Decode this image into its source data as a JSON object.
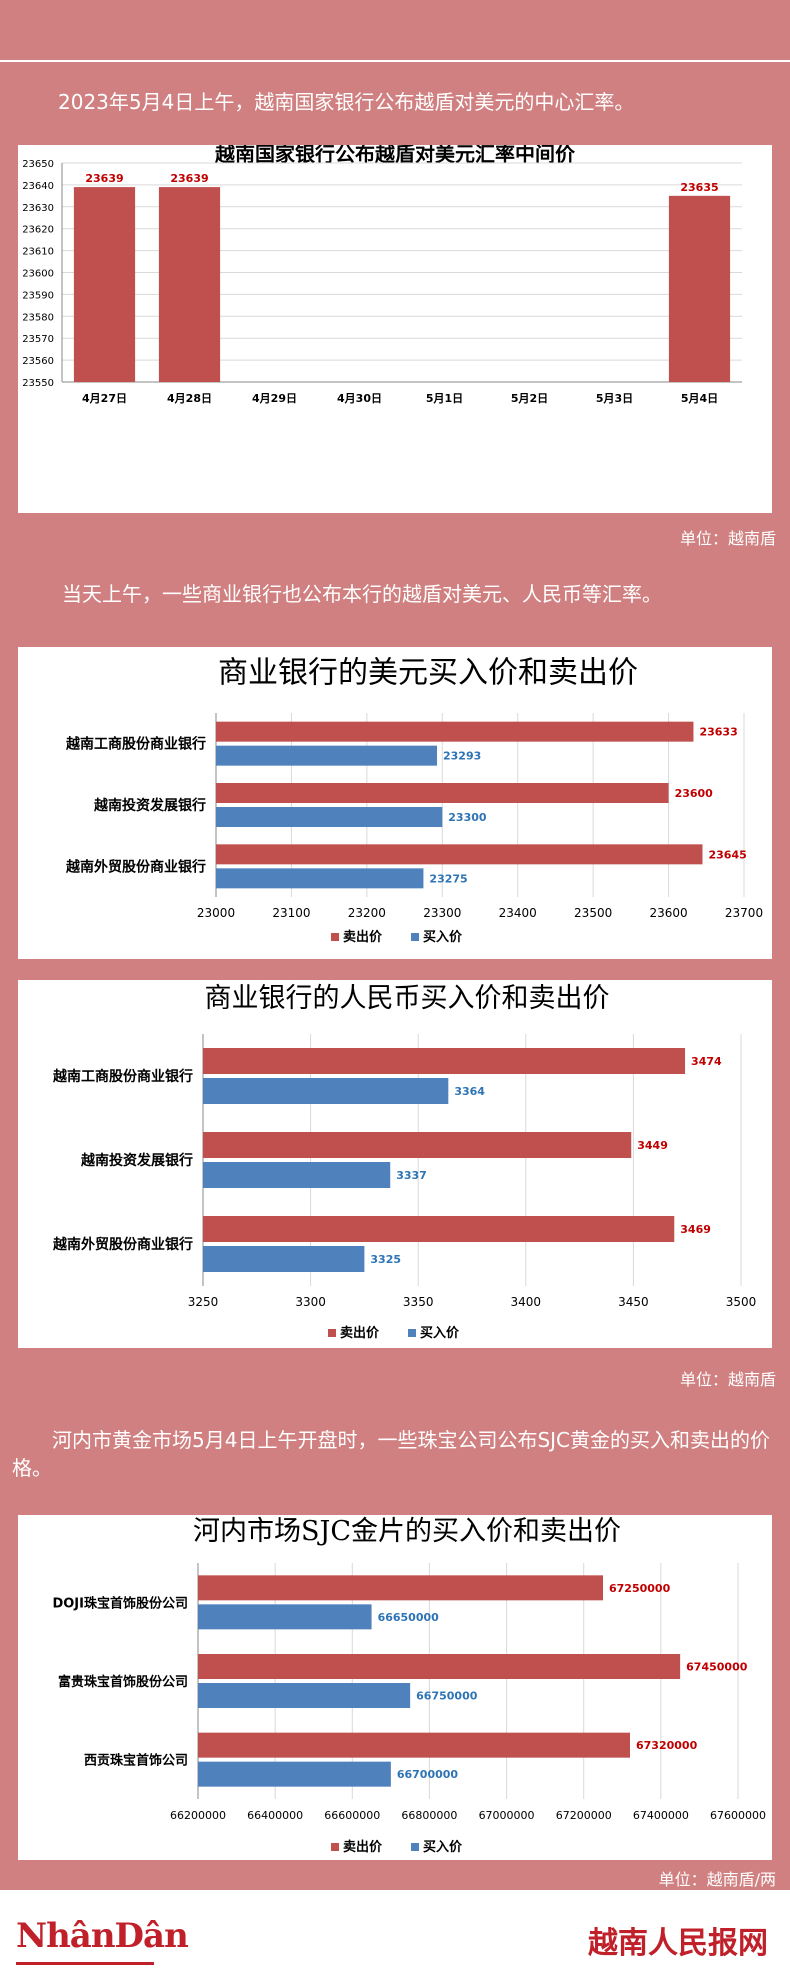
{
  "intro": {
    "p1": "2023年5月4日上午，越南国家银行公布越盾对美元的中心汇率。",
    "p2": "当天上午，一些商业银行也公布本行的越盾对美元、人民币等汇率。",
    "p3": "河内市黄金市场5月4日上午开盘时，一些珠宝公司公布SJC黄金的买入和卖出的价格。"
  },
  "units": {
    "u1": "单位：越南盾",
    "u2": "单位：越南盾",
    "u3": "单位：越南盾/两"
  },
  "footer": {
    "logo_left": "NhânDân",
    "logo_right": "越南人民报网"
  },
  "colors": {
    "red": "#c0504d",
    "blue": "#4f81bd",
    "title": "#000000"
  },
  "chart_data": [
    {
      "type": "bar",
      "title": "越南国家银行公布越盾对美元汇率中间价",
      "categories": [
        "4月27日",
        "4月28日",
        "4月29日",
        "4月30日",
        "5月1日",
        "5月2日",
        "5月3日",
        "5月4日"
      ],
      "values": [
        23639,
        23639,
        null,
        null,
        null,
        null,
        null,
        23635
      ],
      "value_labels": [
        "23639",
        "23639",
        "",
        "",
        "",
        "",
        "",
        "23635"
      ],
      "ylim": [
        23550,
        23650
      ],
      "yticks": [
        23550,
        23560,
        23570,
        23580,
        23590,
        23600,
        23610,
        23620,
        23630,
        23640,
        23650
      ],
      "grid": true
    },
    {
      "type": "bar",
      "orientation": "horizontal",
      "title": "商业银行的美元买入价和卖出价",
      "categories": [
        "越南工商股份商业银行",
        "越南投资发展银行",
        "越南外贸股份商业银行"
      ],
      "series": [
        {
          "name": "卖出价",
          "values": [
            23633,
            23600,
            23645
          ]
        },
        {
          "name": "买入价",
          "values": [
            23293,
            23300,
            23275
          ]
        }
      ],
      "xlim": [
        23000,
        23700
      ],
      "xticks": [
        23000,
        23100,
        23200,
        23300,
        23400,
        23500,
        23600,
        23700
      ],
      "legend": "bottom",
      "grid": true
    },
    {
      "type": "bar",
      "orientation": "horizontal",
      "title": "商业银行的人民币买入价和卖出价",
      "categories": [
        "越南工商股份商业银行",
        "越南投资发展银行",
        "越南外贸股份商业银行"
      ],
      "series": [
        {
          "name": "卖出价",
          "values": [
            3474,
            3449,
            3469
          ]
        },
        {
          "name": "买入价",
          "values": [
            3364,
            3337,
            3325
          ]
        }
      ],
      "xlim": [
        3250,
        3500
      ],
      "xticks": [
        3250,
        3300,
        3350,
        3400,
        3450,
        3500
      ],
      "legend": "bottom",
      "grid": true
    },
    {
      "type": "bar",
      "orientation": "horizontal",
      "title": "河内市场SJC金片的买入价和卖出价",
      "categories": [
        "DOJI珠宝首饰股份公司",
        "富贵珠宝首饰股份公司",
        "西贡珠宝首饰公司"
      ],
      "series": [
        {
          "name": "卖出价",
          "values": [
            67250000,
            67450000,
            67320000
          ]
        },
        {
          "name": "买入价",
          "values": [
            66650000,
            66750000,
            66700000
          ]
        }
      ],
      "xlim": [
        66200000,
        67600000
      ],
      "xticks": [
        66200000,
        66400000,
        66600000,
        66800000,
        67000000,
        67200000,
        67400000,
        67600000
      ],
      "legend": "bottom",
      "grid": true
    }
  ]
}
